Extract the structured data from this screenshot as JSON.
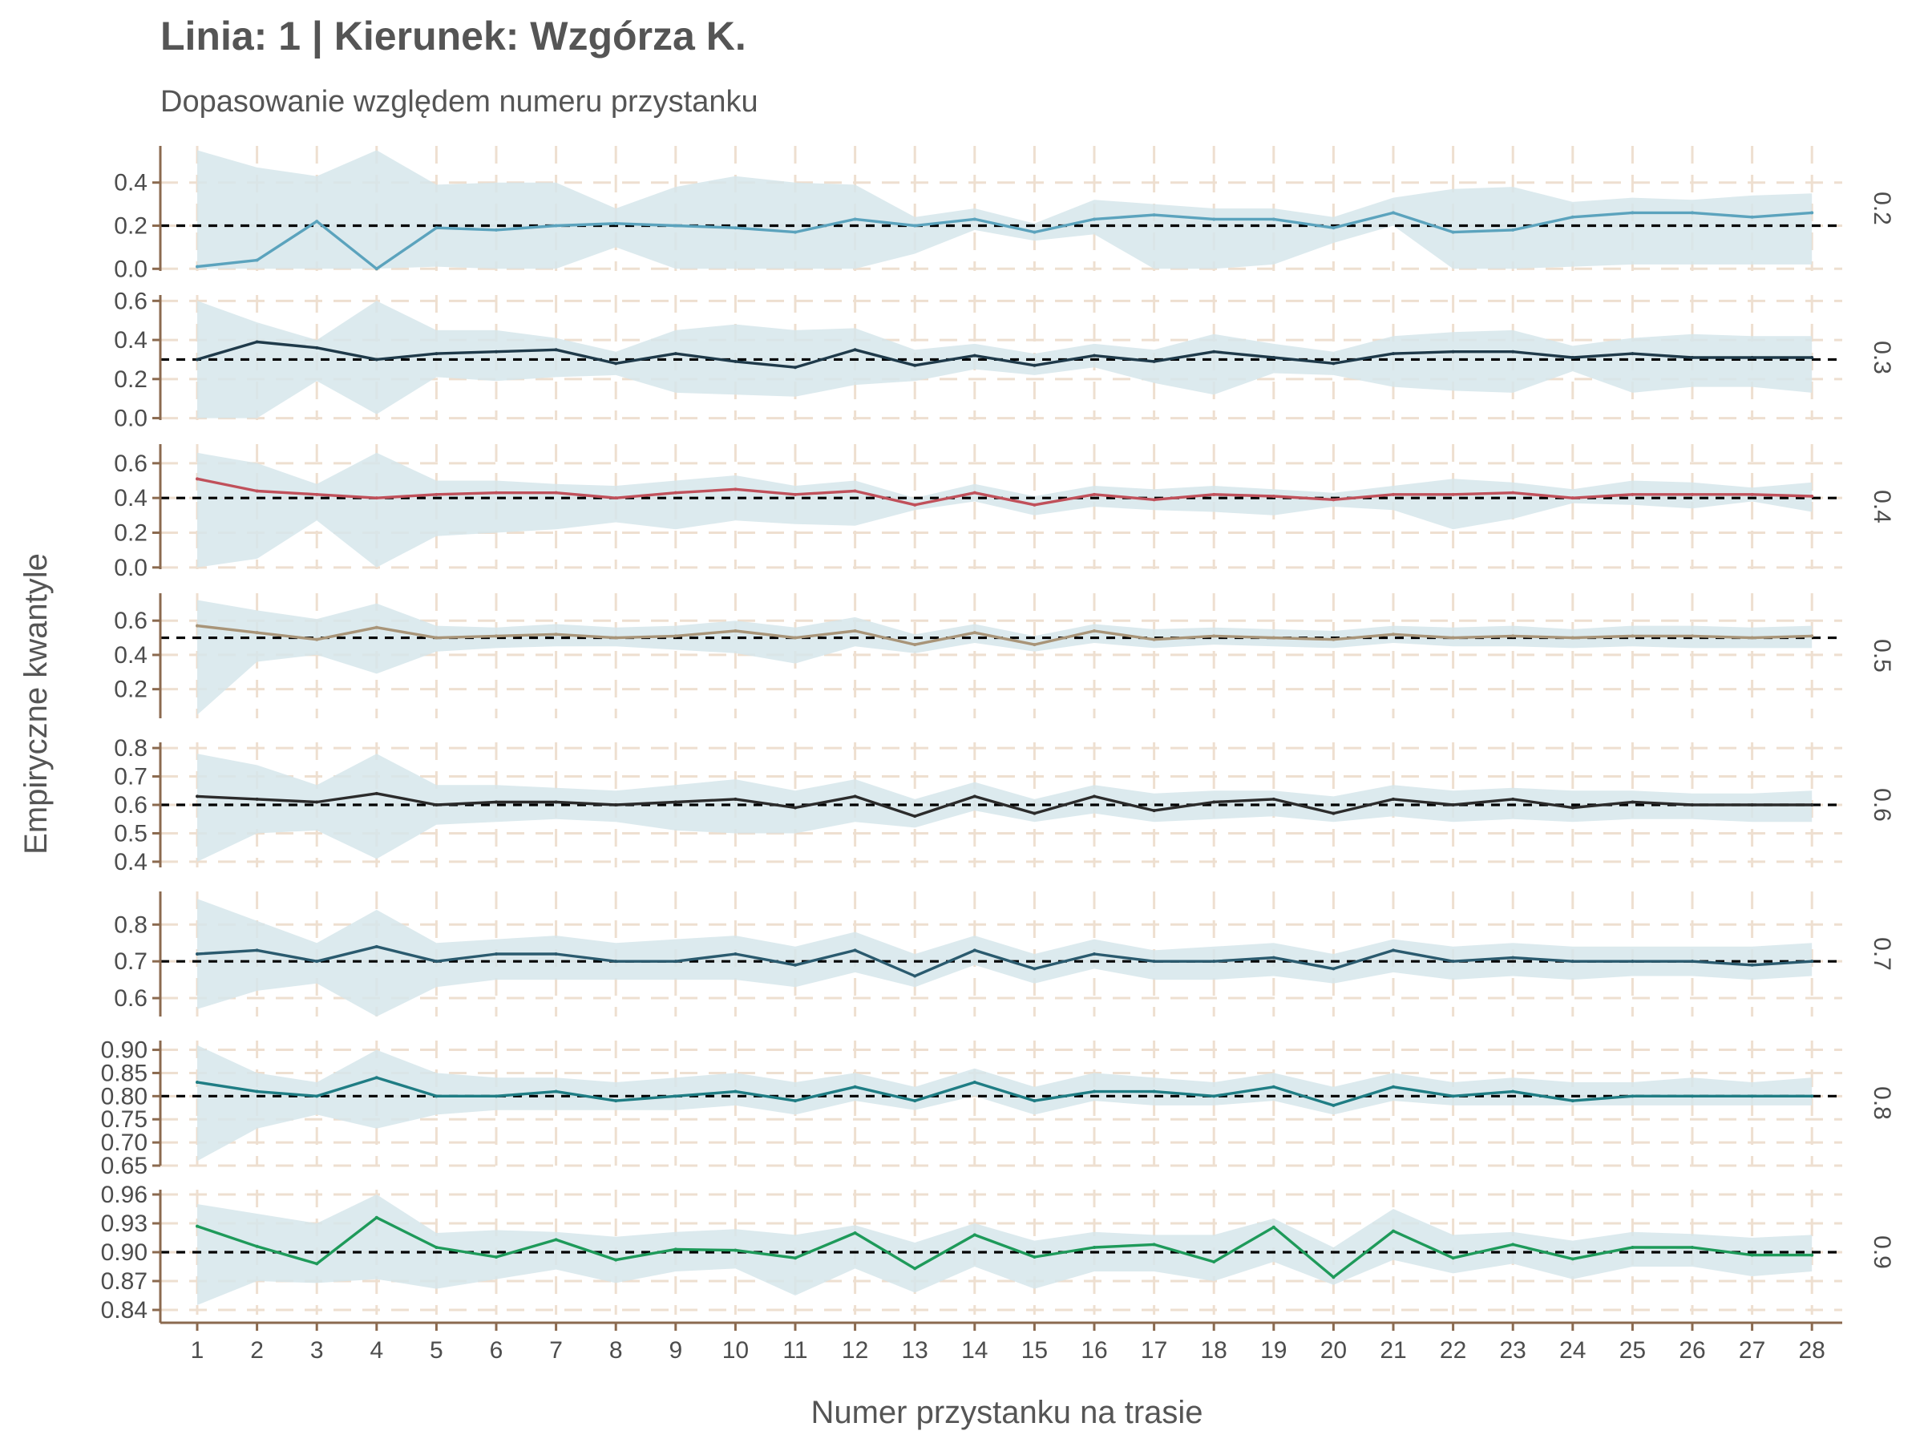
{
  "chart_data": {
    "type": "line",
    "title": "Linia: 1 | Kierunek: Wzgórza K.",
    "subtitle": "Dopasowanie względem numeru przystanku",
    "xlabel": "Numer przystanku na trasie",
    "ylabel": "Empiryczne kwantyle",
    "x": [
      1,
      2,
      3,
      4,
      5,
      6,
      7,
      8,
      9,
      10,
      11,
      12,
      13,
      14,
      15,
      16,
      17,
      18,
      19,
      20,
      21,
      22,
      23,
      24,
      25,
      26,
      27,
      28
    ],
    "grid": "dashed",
    "band_color": "#d6e6eb",
    "reference_line": "dashed",
    "panels": [
      {
        "strip": "0.2",
        "ref": 0.2,
        "color": "#5ba3bd",
        "ylim": [
          -0.01,
          0.57
        ],
        "ticks": [
          "0.0",
          "0.2",
          "0.4"
        ],
        "tick_values": [
          0.0,
          0.2,
          0.4
        ],
        "values": [
          0.01,
          0.04,
          0.22,
          0.0,
          0.19,
          0.18,
          0.2,
          0.21,
          0.2,
          0.19,
          0.17,
          0.23,
          0.2,
          0.23,
          0.17,
          0.23,
          0.25,
          0.23,
          0.23,
          0.19,
          0.26,
          0.17,
          0.18,
          0.24,
          0.26,
          0.26,
          0.24,
          0.26
        ],
        "upper": [
          0.55,
          0.47,
          0.43,
          0.55,
          0.39,
          0.4,
          0.4,
          0.28,
          0.38,
          0.43,
          0.4,
          0.39,
          0.24,
          0.28,
          0.21,
          0.32,
          0.3,
          0.28,
          0.28,
          0.24,
          0.33,
          0.37,
          0.38,
          0.31,
          0.33,
          0.32,
          0.34,
          0.35
        ],
        "lower": [
          0.0,
          0.0,
          0.0,
          0.0,
          0.01,
          0.0,
          0.0,
          0.1,
          0.0,
          0.0,
          0.0,
          0.0,
          0.07,
          0.18,
          0.13,
          0.16,
          0.0,
          0.0,
          0.02,
          0.12,
          0.2,
          0.0,
          0.0,
          0.01,
          0.02,
          0.02,
          0.02,
          0.02
        ]
      },
      {
        "strip": "0.3",
        "ref": 0.3,
        "color": "#1f3a4a",
        "ylim": [
          -0.01,
          0.63
        ],
        "ticks": [
          "0.0",
          "0.2",
          "0.4",
          "0.6"
        ],
        "tick_values": [
          0.0,
          0.2,
          0.4,
          0.6
        ],
        "values": [
          0.3,
          0.39,
          0.36,
          0.3,
          0.33,
          0.34,
          0.35,
          0.28,
          0.33,
          0.29,
          0.26,
          0.35,
          0.27,
          0.32,
          0.27,
          0.32,
          0.29,
          0.34,
          0.31,
          0.28,
          0.33,
          0.34,
          0.34,
          0.31,
          0.33,
          0.31,
          0.31,
          0.31
        ],
        "upper": [
          0.6,
          0.49,
          0.4,
          0.6,
          0.45,
          0.45,
          0.41,
          0.34,
          0.45,
          0.48,
          0.45,
          0.46,
          0.35,
          0.38,
          0.33,
          0.38,
          0.35,
          0.43,
          0.38,
          0.34,
          0.42,
          0.44,
          0.45,
          0.37,
          0.41,
          0.43,
          0.42,
          0.42
        ],
        "lower": [
          0.0,
          0.0,
          0.19,
          0.02,
          0.21,
          0.19,
          0.21,
          0.22,
          0.13,
          0.12,
          0.11,
          0.17,
          0.19,
          0.25,
          0.22,
          0.26,
          0.18,
          0.12,
          0.23,
          0.22,
          0.16,
          0.14,
          0.13,
          0.24,
          0.13,
          0.16,
          0.16,
          0.13
        ]
      },
      {
        "strip": "0.4",
        "ref": 0.4,
        "color": "#c0505a",
        "ylim": [
          -0.01,
          0.71
        ],
        "ticks": [
          "0.0",
          "0.2",
          "0.4",
          "0.6"
        ],
        "tick_values": [
          0.0,
          0.2,
          0.4,
          0.6
        ],
        "values": [
          0.51,
          0.44,
          0.42,
          0.4,
          0.42,
          0.43,
          0.43,
          0.4,
          0.43,
          0.45,
          0.42,
          0.44,
          0.36,
          0.43,
          0.36,
          0.42,
          0.39,
          0.42,
          0.41,
          0.39,
          0.42,
          0.42,
          0.43,
          0.4,
          0.42,
          0.42,
          0.42,
          0.41
        ],
        "upper": [
          0.66,
          0.6,
          0.48,
          0.66,
          0.5,
          0.5,
          0.48,
          0.47,
          0.5,
          0.53,
          0.47,
          0.5,
          0.4,
          0.48,
          0.41,
          0.47,
          0.45,
          0.47,
          0.45,
          0.43,
          0.47,
          0.51,
          0.49,
          0.45,
          0.5,
          0.49,
          0.46,
          0.49
        ],
        "lower": [
          0.0,
          0.05,
          0.27,
          0.0,
          0.18,
          0.2,
          0.22,
          0.26,
          0.22,
          0.27,
          0.25,
          0.24,
          0.33,
          0.38,
          0.3,
          0.35,
          0.33,
          0.32,
          0.3,
          0.35,
          0.33,
          0.22,
          0.28,
          0.37,
          0.36,
          0.34,
          0.38,
          0.32
        ]
      },
      {
        "strip": "0.5",
        "ref": 0.5,
        "color": "#a89478",
        "ylim": [
          0.03,
          0.76
        ],
        "ticks": [
          "0.2",
          "0.4",
          "0.6"
        ],
        "tick_values": [
          0.2,
          0.4,
          0.6
        ],
        "values": [
          0.57,
          0.53,
          0.49,
          0.56,
          0.5,
          0.51,
          0.52,
          0.5,
          0.51,
          0.54,
          0.5,
          0.54,
          0.46,
          0.53,
          0.46,
          0.54,
          0.49,
          0.51,
          0.5,
          0.49,
          0.52,
          0.5,
          0.51,
          0.5,
          0.51,
          0.51,
          0.5,
          0.51
        ],
        "upper": [
          0.72,
          0.66,
          0.61,
          0.7,
          0.57,
          0.56,
          0.58,
          0.56,
          0.57,
          0.6,
          0.56,
          0.62,
          0.52,
          0.58,
          0.51,
          0.58,
          0.55,
          0.56,
          0.55,
          0.54,
          0.57,
          0.56,
          0.57,
          0.55,
          0.57,
          0.57,
          0.56,
          0.57
        ],
        "lower": [
          0.05,
          0.36,
          0.4,
          0.29,
          0.42,
          0.44,
          0.45,
          0.45,
          0.43,
          0.41,
          0.35,
          0.45,
          0.41,
          0.47,
          0.42,
          0.47,
          0.44,
          0.46,
          0.45,
          0.44,
          0.47,
          0.45,
          0.45,
          0.44,
          0.45,
          0.44,
          0.44,
          0.44
        ]
      },
      {
        "strip": "0.6",
        "ref": 0.6,
        "color": "#2b2b2b",
        "ylim": [
          0.38,
          0.82
        ],
        "ticks": [
          "0.4",
          "0.5",
          "0.6",
          "0.7",
          "0.8"
        ],
        "tick_values": [
          0.4,
          0.5,
          0.6,
          0.7,
          0.8
        ],
        "values": [
          0.63,
          0.62,
          0.61,
          0.64,
          0.6,
          0.61,
          0.61,
          0.6,
          0.61,
          0.62,
          0.59,
          0.63,
          0.56,
          0.63,
          0.57,
          0.63,
          0.58,
          0.61,
          0.62,
          0.57,
          0.62,
          0.6,
          0.62,
          0.59,
          0.61,
          0.6,
          0.6,
          0.6
        ],
        "upper": [
          0.78,
          0.74,
          0.67,
          0.78,
          0.67,
          0.67,
          0.66,
          0.65,
          0.67,
          0.69,
          0.65,
          0.69,
          0.62,
          0.68,
          0.62,
          0.67,
          0.64,
          0.65,
          0.65,
          0.63,
          0.67,
          0.65,
          0.66,
          0.65,
          0.65,
          0.64,
          0.64,
          0.65
        ],
        "lower": [
          0.4,
          0.5,
          0.51,
          0.41,
          0.53,
          0.54,
          0.55,
          0.54,
          0.51,
          0.5,
          0.5,
          0.54,
          0.52,
          0.58,
          0.54,
          0.57,
          0.54,
          0.55,
          0.56,
          0.54,
          0.56,
          0.54,
          0.55,
          0.54,
          0.55,
          0.55,
          0.54,
          0.54
        ]
      },
      {
        "strip": "0.7",
        "ref": 0.7,
        "color": "#2a5a6e",
        "ylim": [
          0.55,
          0.89
        ],
        "ticks": [
          "0.6",
          "0.7",
          "0.8"
        ],
        "tick_values": [
          0.6,
          0.7,
          0.8
        ],
        "values": [
          0.72,
          0.73,
          0.7,
          0.74,
          0.7,
          0.72,
          0.72,
          0.7,
          0.7,
          0.72,
          0.69,
          0.73,
          0.66,
          0.73,
          0.68,
          0.72,
          0.7,
          0.7,
          0.71,
          0.68,
          0.73,
          0.7,
          0.71,
          0.7,
          0.7,
          0.7,
          0.69,
          0.7
        ],
        "upper": [
          0.87,
          0.81,
          0.75,
          0.84,
          0.75,
          0.76,
          0.77,
          0.75,
          0.76,
          0.77,
          0.74,
          0.78,
          0.72,
          0.77,
          0.72,
          0.76,
          0.73,
          0.74,
          0.75,
          0.72,
          0.76,
          0.74,
          0.75,
          0.74,
          0.74,
          0.74,
          0.74,
          0.75
        ],
        "lower": [
          0.57,
          0.62,
          0.64,
          0.55,
          0.63,
          0.65,
          0.65,
          0.65,
          0.65,
          0.65,
          0.63,
          0.67,
          0.63,
          0.69,
          0.64,
          0.68,
          0.65,
          0.65,
          0.66,
          0.64,
          0.67,
          0.65,
          0.66,
          0.65,
          0.66,
          0.66,
          0.65,
          0.66
        ]
      },
      {
        "strip": "0.8",
        "ref": 0.8,
        "color": "#1f7d84",
        "ylim": [
          0.65,
          0.92
        ],
        "ticks": [
          "0.65",
          "0.70",
          "0.75",
          "0.80",
          "0.85",
          "0.90"
        ],
        "tick_values": [
          0.65,
          0.7,
          0.75,
          0.8,
          0.85,
          0.9
        ],
        "values": [
          0.83,
          0.81,
          0.8,
          0.84,
          0.8,
          0.8,
          0.81,
          0.79,
          0.8,
          0.81,
          0.79,
          0.82,
          0.79,
          0.83,
          0.79,
          0.81,
          0.81,
          0.8,
          0.82,
          0.78,
          0.82,
          0.8,
          0.81,
          0.79,
          0.8,
          0.8,
          0.8,
          0.8
        ],
        "upper": [
          0.91,
          0.85,
          0.83,
          0.9,
          0.85,
          0.84,
          0.84,
          0.83,
          0.84,
          0.85,
          0.83,
          0.85,
          0.82,
          0.86,
          0.82,
          0.85,
          0.84,
          0.83,
          0.85,
          0.82,
          0.85,
          0.83,
          0.84,
          0.83,
          0.83,
          0.84,
          0.83,
          0.84
        ],
        "lower": [
          0.66,
          0.73,
          0.76,
          0.73,
          0.76,
          0.77,
          0.77,
          0.77,
          0.77,
          0.78,
          0.76,
          0.79,
          0.77,
          0.8,
          0.76,
          0.79,
          0.78,
          0.78,
          0.79,
          0.76,
          0.79,
          0.78,
          0.78,
          0.78,
          0.78,
          0.78,
          0.78,
          0.78
        ]
      },
      {
        "strip": "0.9",
        "ref": 0.9,
        "color": "#1e9a5a",
        "ylim": [
          0.835,
          0.965
        ],
        "ticks": [
          "0.84",
          "0.87",
          "0.90",
          "0.93",
          "0.96"
        ],
        "tick_values": [
          0.84,
          0.87,
          0.9,
          0.93,
          0.96
        ],
        "values": [
          0.927,
          0.906,
          0.888,
          0.936,
          0.905,
          0.895,
          0.913,
          0.892,
          0.903,
          0.902,
          0.894,
          0.92,
          0.883,
          0.918,
          0.895,
          0.905,
          0.908,
          0.89,
          0.926,
          0.874,
          0.922,
          0.894,
          0.908,
          0.893,
          0.905,
          0.905,
          0.897,
          0.897
        ],
        "upper": [
          0.95,
          0.94,
          0.93,
          0.96,
          0.92,
          0.923,
          0.921,
          0.916,
          0.921,
          0.924,
          0.918,
          0.928,
          0.91,
          0.93,
          0.912,
          0.921,
          0.918,
          0.918,
          0.935,
          0.905,
          0.945,
          0.918,
          0.921,
          0.912,
          0.921,
          0.919,
          0.915,
          0.918
        ],
        "lower": [
          0.845,
          0.87,
          0.868,
          0.872,
          0.862,
          0.872,
          0.882,
          0.868,
          0.88,
          0.883,
          0.855,
          0.883,
          0.858,
          0.885,
          0.862,
          0.88,
          0.88,
          0.87,
          0.89,
          0.866,
          0.892,
          0.878,
          0.888,
          0.872,
          0.885,
          0.885,
          0.875,
          0.88
        ]
      }
    ]
  }
}
